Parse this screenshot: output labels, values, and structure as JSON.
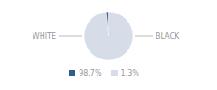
{
  "chart_data": {
    "type": "pie",
    "categories": [
      "WHITE",
      "BLACK"
    ],
    "values": [
      98.7,
      1.3
    ],
    "value_labels": [
      "98.7%",
      "1.3%"
    ],
    "colors": [
      "#d6dde8",
      "#2e5f8a"
    ],
    "legend": "bottom"
  }
}
